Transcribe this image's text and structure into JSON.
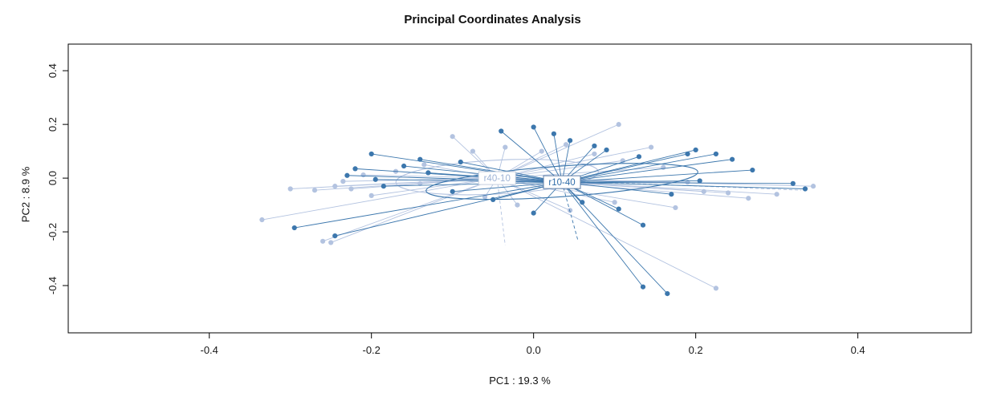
{
  "chart_data": {
    "type": "scatter",
    "title": "Principal Coordinates Analysis",
    "xlabel": "PC1 :  19.3 %",
    "ylabel": "PC2 :  8.9 %",
    "xlim": [
      -0.574,
      0.54
    ],
    "ylim": [
      -0.576,
      0.499
    ],
    "xticks": [
      -0.4,
      -0.2,
      0.0,
      0.2,
      0.4
    ],
    "yticks": [
      -0.4,
      -0.2,
      0.0,
      0.2,
      0.4
    ],
    "grid": false,
    "legend_position": "none",
    "frame_color": "#000000",
    "tick_label_color": "#1a1a1a",
    "groups": [
      {
        "name": "r40-10",
        "color": "#b3c3e0",
        "label_text_color": "#9fb4d6",
        "label_border_color": "#c4cede",
        "label_fill": "#ffffff",
        "centroid": [
          -0.045,
          0.0
        ],
        "ellipse": {
          "cx": -0.045,
          "cy": 0.004,
          "rx": 0.125,
          "ry": 0.063,
          "angle": -3
        },
        "points": [
          [
            -0.335,
            -0.155
          ],
          [
            -0.3,
            -0.04
          ],
          [
            -0.27,
            -0.045
          ],
          [
            -0.26,
            -0.235
          ],
          [
            -0.245,
            -0.03
          ],
          [
            -0.235,
            -0.012
          ],
          [
            -0.225,
            -0.04
          ],
          [
            -0.21,
            0.012
          ],
          [
            -0.2,
            -0.065
          ],
          [
            -0.17,
            0.025
          ],
          [
            -0.135,
            0.05
          ],
          [
            -0.1,
            0.155
          ],
          [
            -0.075,
            0.1
          ],
          [
            -0.035,
            0.115
          ],
          [
            0.01,
            0.1
          ],
          [
            0.04,
            0.125
          ],
          [
            0.075,
            0.09
          ],
          [
            0.105,
            0.2
          ],
          [
            0.11,
            0.065
          ],
          [
            0.145,
            0.115
          ],
          [
            0.16,
            0.04
          ],
          [
            0.19,
            -0.015
          ],
          [
            0.21,
            -0.05
          ],
          [
            0.24,
            -0.055
          ],
          [
            0.265,
            -0.075
          ],
          [
            0.3,
            -0.06
          ],
          [
            0.345,
            -0.03
          ],
          [
            0.225,
            -0.41
          ],
          [
            0.175,
            -0.11
          ],
          [
            0.1,
            -0.09
          ],
          [
            0.045,
            -0.12
          ],
          [
            -0.02,
            -0.1
          ],
          [
            -0.06,
            -0.07
          ],
          [
            -0.25,
            -0.24
          ],
          [
            -0.14,
            -0.02
          ]
        ],
        "dashed_spokes": [
          [
            -0.035,
            -0.25
          ],
          [
            0.33,
            -0.045
          ]
        ]
      },
      {
        "name": "r10-40",
        "color": "#3c77ad",
        "label_text_color": "#2d6ba8",
        "label_border_color": "#5b7ca6",
        "label_fill": "#ffffff",
        "centroid": [
          0.035,
          -0.015
        ],
        "ellipse": {
          "cx": 0.035,
          "cy": -0.012,
          "rx": 0.168,
          "ry": 0.057,
          "angle": -4
        },
        "points": [
          [
            -0.295,
            -0.185
          ],
          [
            -0.245,
            -0.215
          ],
          [
            -0.23,
            0.01
          ],
          [
            -0.22,
            0.035
          ],
          [
            -0.2,
            0.09
          ],
          [
            -0.195,
            -0.005
          ],
          [
            -0.185,
            -0.03
          ],
          [
            -0.16,
            0.045
          ],
          [
            -0.14,
            0.07
          ],
          [
            -0.13,
            0.02
          ],
          [
            -0.09,
            0.06
          ],
          [
            -0.04,
            0.175
          ],
          [
            0.0,
            0.19
          ],
          [
            0.025,
            0.165
          ],
          [
            0.045,
            0.14
          ],
          [
            0.075,
            0.12
          ],
          [
            0.09,
            0.105
          ],
          [
            0.13,
            0.08
          ],
          [
            0.19,
            0.09
          ],
          [
            0.2,
            0.105
          ],
          [
            0.225,
            0.09
          ],
          [
            0.245,
            0.07
          ],
          [
            0.27,
            0.03
          ],
          [
            0.32,
            -0.02
          ],
          [
            0.335,
            -0.04
          ],
          [
            0.205,
            -0.01
          ],
          [
            0.17,
            -0.06
          ],
          [
            0.135,
            -0.175
          ],
          [
            0.135,
            -0.405
          ],
          [
            0.165,
            -0.43
          ],
          [
            0.105,
            -0.115
          ],
          [
            0.06,
            -0.09
          ],
          [
            0.0,
            -0.13
          ],
          [
            -0.05,
            -0.08
          ],
          [
            -0.1,
            -0.05
          ]
        ],
        "dashed_spokes": [
          [
            0.055,
            -0.235
          ]
        ]
      }
    ]
  }
}
